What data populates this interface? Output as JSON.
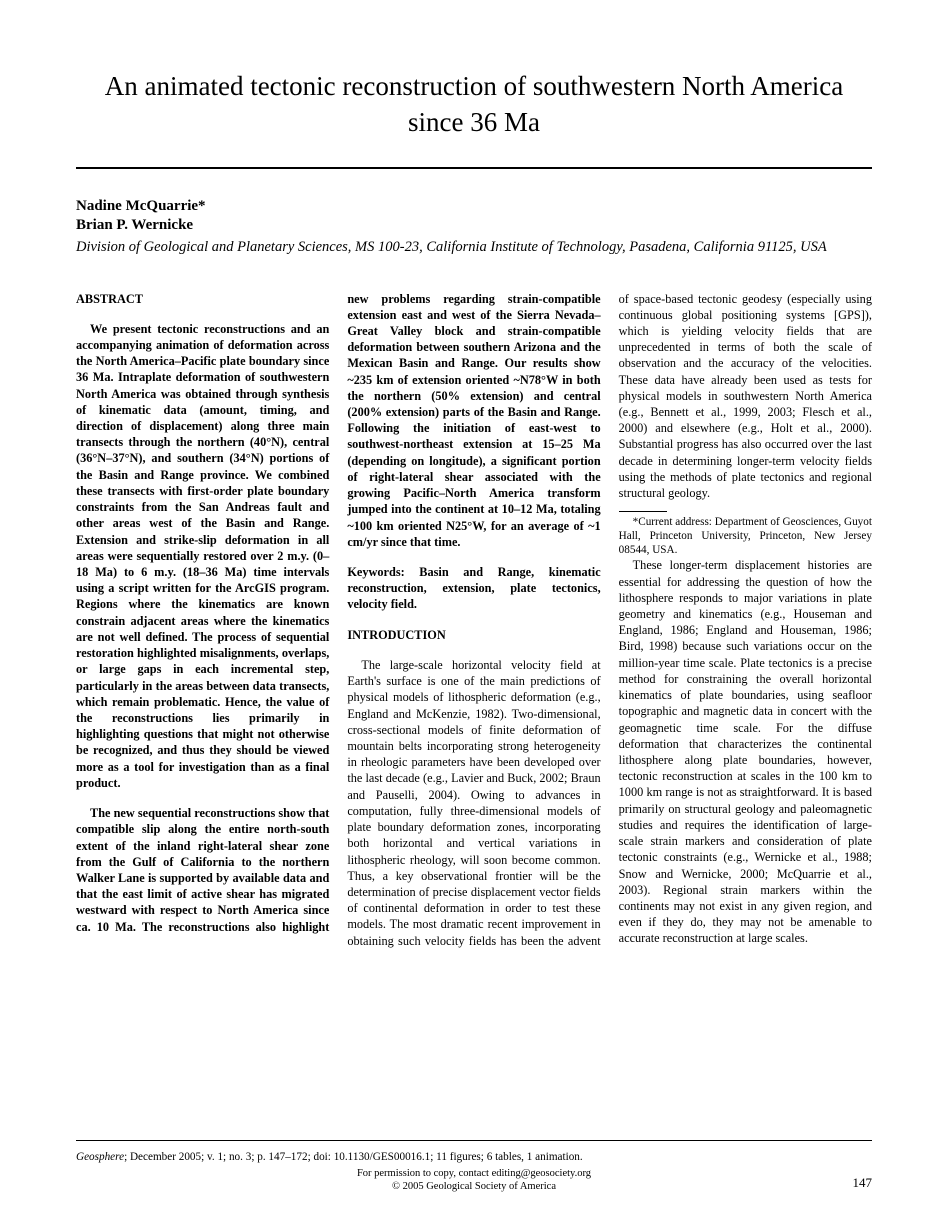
{
  "title": "An animated tectonic reconstruction of southwestern North America since 36 Ma",
  "authors": {
    "a1": "Nadine McQuarrie*",
    "a2": "Brian P. Wernicke"
  },
  "affiliation": "Division of Geological and Planetary Sciences, MS 100-23, California Institute of Technology, Pasadena, California 91125, USA",
  "abstract_head": "ABSTRACT",
  "abstract_p1": "We present tectonic reconstructions and an accompanying animation of deformation across the North America–Pacific plate boundary since 36 Ma. Intraplate deformation of southwestern North America was obtained through synthesis of kinematic data (amount, timing, and direction of displacement) along three main transects through the northern (40°N), central (36°N–37°N), and southern (34°N) portions of the Basin and Range province. We combined these transects with first-order plate boundary constraints from the San Andreas fault and other areas west of the Basin and Range. Extension and strike-slip deformation in all areas were sequentially restored over 2 m.y. (0–18 Ma) to 6 m.y. (18–36 Ma) time intervals using a script written for the ArcGIS program. Regions where the kinematics are known constrain adjacent areas where the kinematics are not well defined. The process of sequential restoration highlighted misalignments, overlaps, or large gaps in each incremental step, particularly in the areas between data transects, which remain problematic. Hence, the value of the reconstructions lies primarily in highlighting questions that might not otherwise be recognized, and thus they should be viewed more as a tool for investigation than as a final product.",
  "abstract_p2": "The new sequential reconstructions show that compatible slip along the entire north-south extent of the inland right-lateral shear zone from the Gulf of California to the northern Walker Lane is supported by available data and that the east limit of active shear has migrated westward with respect to North America since ca. 10 Ma. The reconstructions also highlight new problems regarding strain-compatible extension east and west of the Sierra Nevada–Great Valley block and strain-compatible deformation between southern Arizona and the Mexican Basin and Range. Our results show ~235 km of extension oriented ~N78°W in both the northern (50% extension) and central (200% extension) parts of the Basin and Range. Following the initiation of east-west to southwest-northeast extension at 15–25 Ma (depending on longitude), a significant portion of right-lateral shear associated with the growing Pacific–North America transform jumped into the continent at 10–12 Ma, totaling ~100 km oriented N25°W, for an average of ~1 cm/yr since that time.",
  "keywords": "Keywords: Basin and Range, kinematic reconstruction, extension, plate tectonics, velocity field.",
  "intro_head": "INTRODUCTION",
  "intro_p1": "The large-scale horizontal velocity field at Earth's surface is one of the main predictions of physical models of lithospheric deformation (e.g., England and McKenzie, 1982). Two-dimensional, cross-sectional models of finite deformation of mountain belts incorporating strong heterogeneity in rheologic parameters have been developed over the last decade (e.g., Lavier and Buck, 2002; Braun and Pauselli, 2004). Owing to advances in computation, fully three-dimensional models of plate boundary deformation zones, incorporating both horizontal and vertical variations in lithospheric rheology, will soon become common. Thus, a key observational frontier will be the determination of precise displacement vector fields of continental deformation in order to test these models. The most dramatic recent improvement in obtaining such velocity fields has been the advent of space-based tectonic geodesy (especially using continuous global positioning systems [GPS]), which is yielding velocity fields that are unprecedented in terms of both the scale of observation and the accuracy of the velocities. These data have already been used as tests for physical models in southwestern North America (e.g., Bennett et al., 1999, 2003; Flesch et al., 2000) and elsewhere (e.g., Holt et al., 2000). Substantial progress has also occurred over the last decade in determining longer-term velocity fields using the methods of plate tectonics and regional structural geology.",
  "intro_p2": "These longer-term displacement histories are essential for addressing the question of how the lithosphere responds to major variations in plate geometry and kinematics (e.g., Houseman and England, 1986; England and Houseman, 1986; Bird, 1998) because such variations occur on the million-year time scale. Plate tectonics is a precise method for constraining the overall horizontal kinematics of plate boundaries, using seafloor topographic and magnetic data in concert with the geomagnetic time scale. For the diffuse deformation that characterizes the continental lithosphere along plate boundaries, however, tectonic reconstruction at scales in the 100 km to 1000 km range is not as straightforward. It is based primarily on structural geology and paleomagnetic studies and requires the identification of large-scale strain markers and consideration of plate tectonic constraints (e.g., Wernicke et al., 1988; Snow and Wernicke, 2000; McQuarrie et al., 2003). Regional strain markers within the continents may not exist in any given region, and even if they do, they may not be amenable to accurate reconstruction at large scales.",
  "footnote": "*Current address: Department of Geosciences, Guyot Hall, Princeton University, Princeton, New Jersey 08544, USA.",
  "citation_journal": "Geosphere",
  "citation_rest": "; December 2005; v. 1; no. 3; p. 147–172; doi: 10.1130/GES00016.1; 11 figures; 6 tables, 1 animation.",
  "permission_line1": "For permission to copy, contact editing@geosociety.org",
  "permission_line2": "© 2005 Geological Society of America",
  "pagenum": "147"
}
